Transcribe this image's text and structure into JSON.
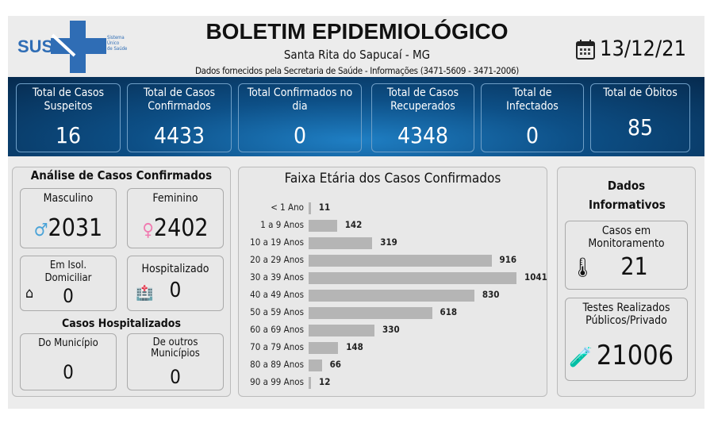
{
  "header": {
    "logo_text": "SUS",
    "logo_sub": [
      "Sistema",
      "Único",
      "de Saúde"
    ],
    "title": "BOLETIM EPIDEMIOLÓGICO",
    "city": "Santa Rita do Sapucaí - MG",
    "source": "Dados fornecidos pela Secretaria de Saúde - Informações (3471-5609 - 3471-2006)",
    "date": "13/12/21",
    "date_icon": "calendar-icon"
  },
  "totals": [
    {
      "label": "Total de Casos Suspeitos",
      "value": "16"
    },
    {
      "label": "Total de Casos Confirmados",
      "value": "4433"
    },
    {
      "label": "Total Confirmados no dia",
      "value": "0"
    },
    {
      "label": "Total de Casos Recuperados",
      "value": "4348"
    },
    {
      "label": "Total de Infectados",
      "value": "0"
    },
    {
      "label": "Total de Óbitos",
      "value": "85"
    }
  ],
  "analysis": {
    "title": "Análise de Casos Confirmados",
    "male_label": "Masculino",
    "male_value": "2031",
    "female_label": "Feminino",
    "female_value": "2402",
    "isolation_label": "Em Isol. Domiciliar",
    "isolation_value": "0",
    "hospital_label": "Hospitalizado",
    "hospital_value": "0",
    "hosp_title": "Casos Hospitalizados",
    "municipal_label": "Do Município",
    "municipal_value": "0",
    "other_label": "De outros Municípios",
    "other_value": "0"
  },
  "chart_data": {
    "type": "bar",
    "orientation": "horizontal",
    "title": "Faixa Etária dos Casos Confirmados",
    "categories": [
      "< 1 Ano",
      "1 a 9 Anos",
      "10 a 19 Anos",
      "20 a 29 Anos",
      "30 a 39 Anos",
      "40 a 49 Anos",
      "50 a 59 Anos",
      "60 a 69 Anos",
      "70 a 79 Anos",
      "80 a 89 Anos",
      "90 a 99 Anos"
    ],
    "values": [
      11,
      142,
      319,
      916,
      1041,
      830,
      618,
      330,
      148,
      66,
      12
    ],
    "bar_color": "#b5b5b5",
    "data_labels": true,
    "grid": false
  },
  "info": {
    "title": "Dados Informativos",
    "monitor_label": "Casos em Monitoramento",
    "monitor_value": "21",
    "tests_label": "Testes Realizados Públicos/Privado",
    "tests_value": "21006"
  },
  "colors": {
    "sus_blue": "#2f6db5",
    "band_dark": "#062a4e",
    "band_light": "#1f7fc4",
    "male": "#4aa3d8",
    "female": "#f07ab0"
  }
}
